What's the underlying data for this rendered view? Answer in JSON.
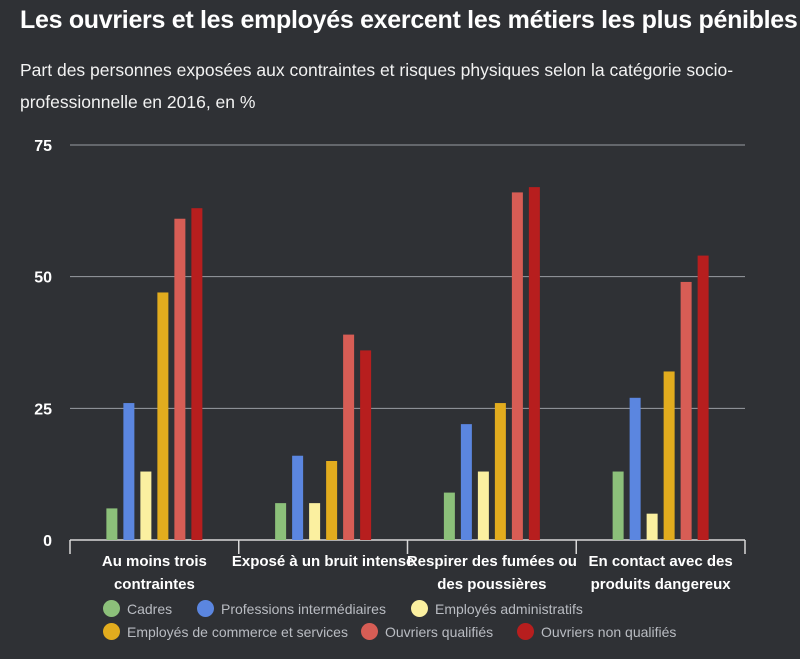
{
  "header": {
    "title": "Les ouvriers et les employés exercent les métiers les plus pénibles",
    "subtitle": "Part des personnes exposées aux contraintes et risques physiques selon la catégorie socio-professionnelle en 2016, en %"
  },
  "chart_data": {
    "type": "bar",
    "title": "Les ouvriers et les employés exercent les métiers les plus pénibles",
    "subtitle": "Part des personnes exposées aux contraintes et risques physiques selon la catégorie socio-professionnelle en 2016, en %",
    "categories": [
      [
        "Au moins trois",
        "contraintes"
      ],
      [
        "Exposé à un bruit intense"
      ],
      [
        "Respirer des fumées ou",
        "des poussières"
      ],
      [
        "En contact avec des",
        "produits dangereux"
      ]
    ],
    "series": [
      {
        "name": "Cadres",
        "color": "#8cc07a",
        "values": [
          6,
          7,
          9,
          13
        ]
      },
      {
        "name": "Professions intermédiaires",
        "color": "#5b86e0",
        "values": [
          26,
          16,
          22,
          27
        ]
      },
      {
        "name": "Employés administratifs",
        "color": "#fbf0a0",
        "values": [
          13,
          7,
          13,
          5
        ]
      },
      {
        "name": "Employés de commerce et services",
        "color": "#e2ac1e",
        "values": [
          47,
          15,
          26,
          32
        ]
      },
      {
        "name": "Ouvriers qualifiés",
        "color": "#d75d55",
        "values": [
          61,
          39,
          66,
          49
        ]
      },
      {
        "name": "Ouvriers non qualifiés",
        "color": "#b71e1e",
        "values": [
          63,
          36,
          67,
          54
        ]
      }
    ],
    "yticks": [
      0,
      25,
      50,
      75
    ],
    "ylim": [
      0,
      75
    ],
    "grid": true,
    "legend_position": "bottom"
  }
}
